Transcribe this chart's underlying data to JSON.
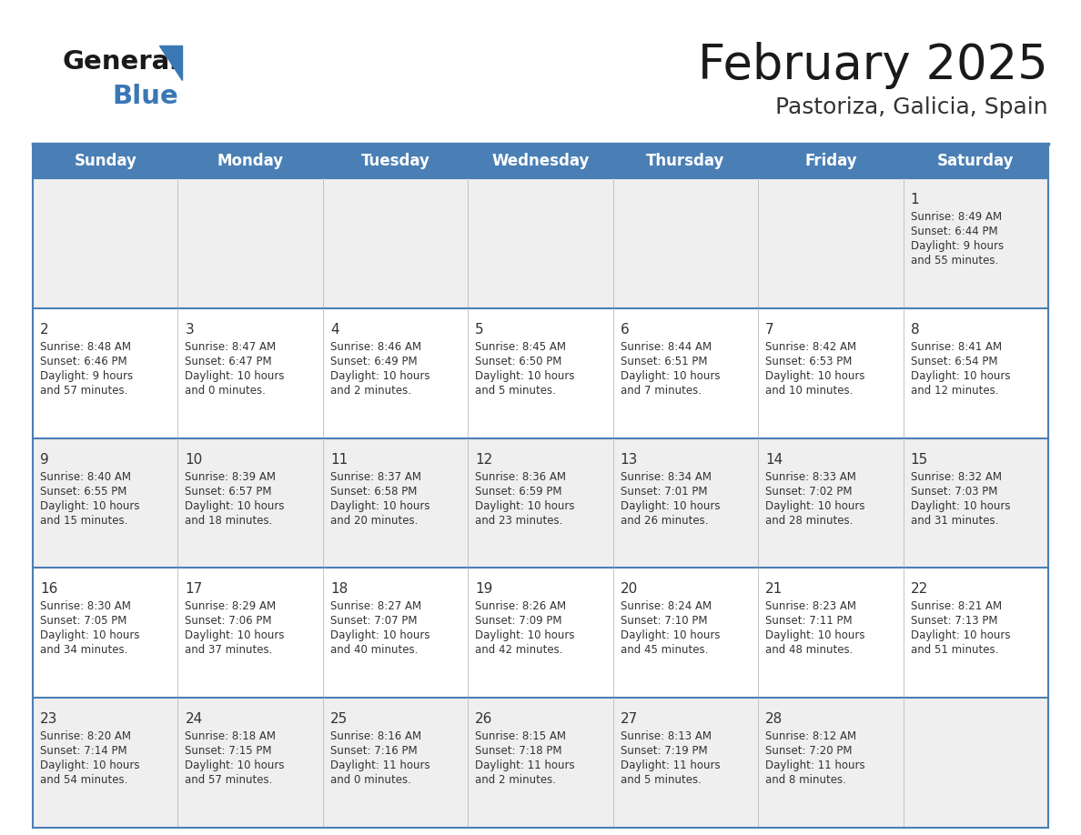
{
  "title": "February 2025",
  "subtitle": "Pastoriza, Galicia, Spain",
  "header_color": "#4a7fb5",
  "header_text_color": "#ffffff",
  "background_color": "#ffffff",
  "alt_row_color": "#efefef",
  "border_color": "#4a7fb5",
  "day_names": [
    "Sunday",
    "Monday",
    "Tuesday",
    "Wednesday",
    "Thursday",
    "Friday",
    "Saturday"
  ],
  "title_color": "#1a1a1a",
  "subtitle_color": "#333333",
  "cell_text_color": "#333333",
  "day_number_color": "#333333",
  "logo_triangle_color": "#3a78b5",
  "calendar_data": [
    [
      null,
      null,
      null,
      null,
      null,
      null,
      {
        "day": 1,
        "sunrise": "8:49 AM",
        "sunset": "6:44 PM",
        "daylight": "9 hours\nand 55 minutes."
      }
    ],
    [
      {
        "day": 2,
        "sunrise": "8:48 AM",
        "sunset": "6:46 PM",
        "daylight": "9 hours\nand 57 minutes."
      },
      {
        "day": 3,
        "sunrise": "8:47 AM",
        "sunset": "6:47 PM",
        "daylight": "10 hours\nand 0 minutes."
      },
      {
        "day": 4,
        "sunrise": "8:46 AM",
        "sunset": "6:49 PM",
        "daylight": "10 hours\nand 2 minutes."
      },
      {
        "day": 5,
        "sunrise": "8:45 AM",
        "sunset": "6:50 PM",
        "daylight": "10 hours\nand 5 minutes."
      },
      {
        "day": 6,
        "sunrise": "8:44 AM",
        "sunset": "6:51 PM",
        "daylight": "10 hours\nand 7 minutes."
      },
      {
        "day": 7,
        "sunrise": "8:42 AM",
        "sunset": "6:53 PM",
        "daylight": "10 hours\nand 10 minutes."
      },
      {
        "day": 8,
        "sunrise": "8:41 AM",
        "sunset": "6:54 PM",
        "daylight": "10 hours\nand 12 minutes."
      }
    ],
    [
      {
        "day": 9,
        "sunrise": "8:40 AM",
        "sunset": "6:55 PM",
        "daylight": "10 hours\nand 15 minutes."
      },
      {
        "day": 10,
        "sunrise": "8:39 AM",
        "sunset": "6:57 PM",
        "daylight": "10 hours\nand 18 minutes."
      },
      {
        "day": 11,
        "sunrise": "8:37 AM",
        "sunset": "6:58 PM",
        "daylight": "10 hours\nand 20 minutes."
      },
      {
        "day": 12,
        "sunrise": "8:36 AM",
        "sunset": "6:59 PM",
        "daylight": "10 hours\nand 23 minutes."
      },
      {
        "day": 13,
        "sunrise": "8:34 AM",
        "sunset": "7:01 PM",
        "daylight": "10 hours\nand 26 minutes."
      },
      {
        "day": 14,
        "sunrise": "8:33 AM",
        "sunset": "7:02 PM",
        "daylight": "10 hours\nand 28 minutes."
      },
      {
        "day": 15,
        "sunrise": "8:32 AM",
        "sunset": "7:03 PM",
        "daylight": "10 hours\nand 31 minutes."
      }
    ],
    [
      {
        "day": 16,
        "sunrise": "8:30 AM",
        "sunset": "7:05 PM",
        "daylight": "10 hours\nand 34 minutes."
      },
      {
        "day": 17,
        "sunrise": "8:29 AM",
        "sunset": "7:06 PM",
        "daylight": "10 hours\nand 37 minutes."
      },
      {
        "day": 18,
        "sunrise": "8:27 AM",
        "sunset": "7:07 PM",
        "daylight": "10 hours\nand 40 minutes."
      },
      {
        "day": 19,
        "sunrise": "8:26 AM",
        "sunset": "7:09 PM",
        "daylight": "10 hours\nand 42 minutes."
      },
      {
        "day": 20,
        "sunrise": "8:24 AM",
        "sunset": "7:10 PM",
        "daylight": "10 hours\nand 45 minutes."
      },
      {
        "day": 21,
        "sunrise": "8:23 AM",
        "sunset": "7:11 PM",
        "daylight": "10 hours\nand 48 minutes."
      },
      {
        "day": 22,
        "sunrise": "8:21 AM",
        "sunset": "7:13 PM",
        "daylight": "10 hours\nand 51 minutes."
      }
    ],
    [
      {
        "day": 23,
        "sunrise": "8:20 AM",
        "sunset": "7:14 PM",
        "daylight": "10 hours\nand 54 minutes."
      },
      {
        "day": 24,
        "sunrise": "8:18 AM",
        "sunset": "7:15 PM",
        "daylight": "10 hours\nand 57 minutes."
      },
      {
        "day": 25,
        "sunrise": "8:16 AM",
        "sunset": "7:16 PM",
        "daylight": "11 hours\nand 0 minutes."
      },
      {
        "day": 26,
        "sunrise": "8:15 AM",
        "sunset": "7:18 PM",
        "daylight": "11 hours\nand 2 minutes."
      },
      {
        "day": 27,
        "sunrise": "8:13 AM",
        "sunset": "7:19 PM",
        "daylight": "11 hours\nand 5 minutes."
      },
      {
        "day": 28,
        "sunrise": "8:12 AM",
        "sunset": "7:20 PM",
        "daylight": "11 hours\nand 8 minutes."
      },
      null
    ]
  ]
}
